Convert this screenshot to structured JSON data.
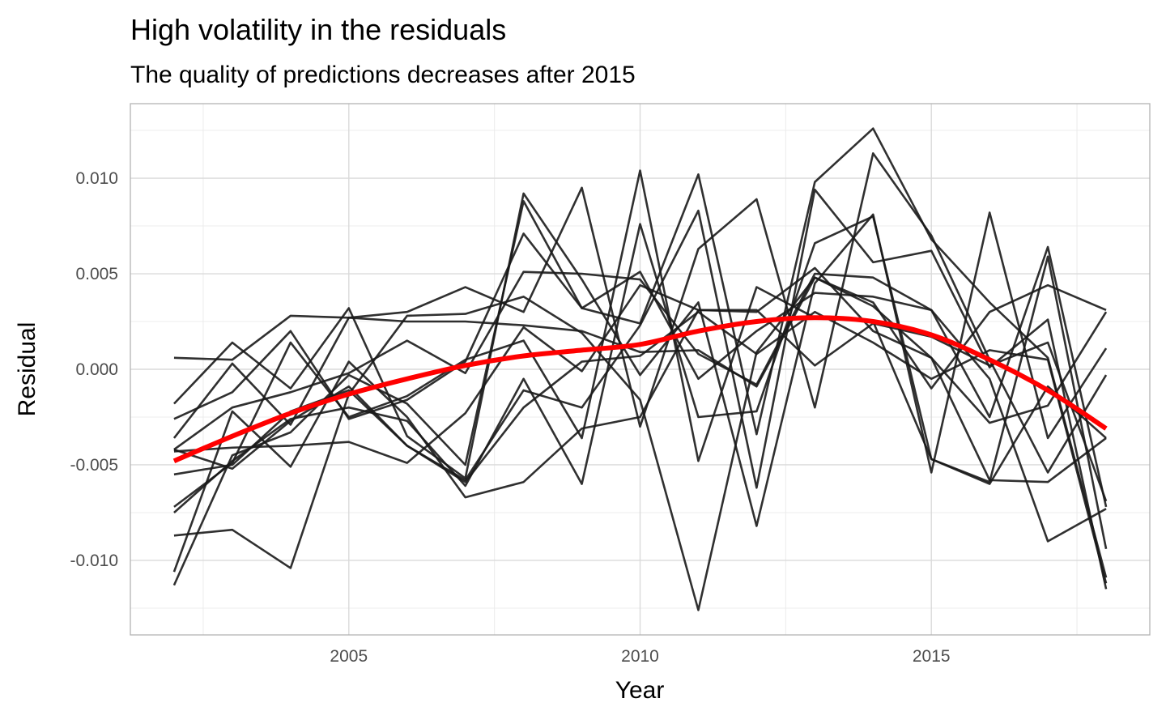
{
  "chart_data": {
    "type": "line",
    "title": "High volatility in the residuals",
    "subtitle": "The quality of predictions decreases after 2015",
    "xlabel": "Year",
    "ylabel": "Residual",
    "xlim": [
      2001.25,
      2018.75
    ],
    "ylim": [
      -0.0139,
      0.0139
    ],
    "x_ticks": [
      2005,
      2010,
      2015
    ],
    "x_tick_labels": [
      "2005",
      "2010",
      "2015"
    ],
    "y_ticks": [
      -0.01,
      -0.005,
      0,
      0.005,
      0.01
    ],
    "y_tick_labels": [
      "-0.010",
      "-0.005",
      "0.000",
      "0.005",
      "0.010"
    ],
    "grid": true,
    "legend": "none",
    "line_color": "#1a1a1a",
    "trend_color": "#ff0000",
    "x": [
      2002,
      2003,
      2004,
      2005,
      2006,
      2007,
      2008,
      2009,
      2010,
      2011,
      2012,
      2013,
      2014,
      2015,
      2016,
      2017,
      2018
    ],
    "series": [
      {
        "values": [
          0.0006,
          0.0005,
          0.0028,
          0.0027,
          0.0025,
          0.0025,
          0.0023,
          0.002,
          0.0009,
          0.001,
          -0.0009,
          0.0048,
          0.0035,
          -0.001,
          0.003,
          0.0044,
          0.0031
        ]
      },
      {
        "values": [
          -0.0018,
          0.0014,
          -0.001,
          0.0032,
          -0.0035,
          -0.0057,
          0.0092,
          0.0047,
          -0.0003,
          0.0035,
          -0.0082,
          0.0045,
          0.0081,
          -0.0054,
          0.0082,
          -0.0036,
          0.0011
        ]
      },
      {
        "values": [
          -0.0026,
          -0.0012,
          0.002,
          -0.0026,
          -0.0016,
          0.0004,
          0.0071,
          0.0032,
          0.0024,
          0.0102,
          -0.0034,
          0.0098,
          0.0126,
          0.0068,
          0.0035,
          0.0006,
          -0.0109
        ]
      },
      {
        "values": [
          -0.0036,
          0.0003,
          -0.0029,
          0.0027,
          0.003,
          0.0043,
          0.003,
          0.0095,
          -0.003,
          0.0063,
          0.0089,
          -0.002,
          0.0113,
          0.007,
          0.0005,
          -0.0054,
          -0.0003
        ]
      },
      {
        "values": [
          -0.0042,
          -0.002,
          -0.0012,
          -0.0002,
          0.0015,
          -0.0002,
          0.0051,
          0.005,
          0.0047,
          0.0008,
          -0.0008,
          0.005,
          0.0048,
          0.0031,
          -0.0025,
          0.0064,
          -0.0072
        ]
      },
      {
        "values": [
          -0.0043,
          -0.0041,
          -0.004,
          -0.0038,
          -0.0049,
          -0.0023,
          0.0022,
          -0.0001,
          0.0044,
          0.0031,
          0.003,
          0.0053,
          0.002,
          0.0006,
          -0.0028,
          -0.0019,
          0.003
        ]
      },
      {
        "values": [
          -0.0055,
          -0.005,
          -0.0022,
          -0.0011,
          -0.004,
          -0.0058,
          -0.0011,
          -0.002,
          0.0023,
          0.0083,
          -0.0062,
          0.0094,
          0.0056,
          0.0062,
          0.0001,
          0.0026,
          -0.0115
        ]
      },
      {
        "values": [
          -0.0072,
          -0.0049,
          0.0014,
          -0.0025,
          -0.0014,
          0.0005,
          0.0015,
          -0.0036,
          0.0104,
          -0.0048,
          0.0043,
          0.0027,
          0.0025,
          -0.0047,
          -0.0059,
          0.0059,
          -0.0094
        ]
      },
      {
        "values": [
          -0.0075,
          -0.0048,
          -0.0026,
          -0.002,
          -0.0027,
          -0.0061,
          -0.0005,
          -0.006,
          0.0076,
          -0.0025,
          -0.0022,
          0.0066,
          0.008,
          -0.0047,
          -0.006,
          -0.0009,
          -0.0036
        ]
      },
      {
        "values": [
          -0.0087,
          -0.0084,
          -0.0104,
          -0.0013,
          0.0028,
          0.0029,
          0.0038,
          0.0019,
          -0.0016,
          -0.0126,
          0.0009,
          0.0048,
          0.0033,
          0.0006,
          -0.0058,
          -0.0059,
          -0.0036
        ]
      },
      {
        "values": [
          -0.0106,
          -0.0022,
          -0.0051,
          0.0004,
          -0.0025,
          -0.0067,
          -0.0059,
          -0.0031,
          -0.0025,
          0.0031,
          0.0031,
          0.0002,
          0.0024,
          0.0017,
          0.0002,
          0.0014,
          -0.0069
        ]
      },
      {
        "values": [
          -0.0113,
          -0.0045,
          -0.0033,
          -0.0003,
          -0.0018,
          -0.005,
          0.0088,
          0.0032,
          0.0051,
          -0.0005,
          0.002,
          0.004,
          0.0038,
          0.0031,
          -0.0005,
          -0.009,
          -0.0073
        ]
      },
      {
        "values": [
          -0.0042,
          -0.0052,
          -0.0027,
          -0.0009,
          -0.004,
          -0.0059,
          -0.002,
          0.0004,
          0.0007,
          0.003,
          0.0008,
          0.003,
          0.0014,
          -0.0005,
          0.001,
          0.0005,
          -0.0112
        ]
      }
    ],
    "trend": {
      "values": [
        -0.0048,
        -0.0035,
        -0.0023,
        -0.0013,
        -0.0005,
        0.0002,
        0.0007,
        0.001,
        0.0013,
        0.002,
        0.0025,
        0.0027,
        0.0025,
        0.0018,
        0.0005,
        -0.0011,
        -0.0031
      ]
    }
  }
}
